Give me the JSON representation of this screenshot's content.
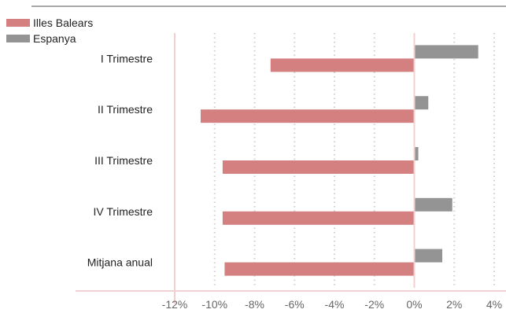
{
  "chart_data": {
    "type": "bar",
    "orientation": "horizontal",
    "categories": [
      "I Trimestre",
      "II Trimestre",
      "III Trimestre",
      "IV Trimestre",
      "Mitjana anual"
    ],
    "series": [
      {
        "name": "Illes Balears",
        "color": "#d47f80",
        "values": [
          -7.2,
          -10.7,
          -9.6,
          -9.6,
          -9.5
        ]
      },
      {
        "name": "Espanya",
        "color": "#949494",
        "values": [
          3.2,
          0.7,
          0.2,
          1.9,
          1.4
        ]
      }
    ],
    "xlim": [
      -12,
      4
    ],
    "xticks": [
      -12,
      -10,
      -8,
      -6,
      -4,
      -2,
      0,
      2,
      4
    ],
    "xtick_labels": [
      "-12%",
      "-10%",
      "-8%",
      "-6%",
      "-4%",
      "-2%",
      "0%",
      "2%",
      "4%"
    ],
    "grid": "vertical-dotted",
    "legend_position": "top-left",
    "colors": {
      "zero_line": "#f0d0d0",
      "axis_line": "#f0d0d0",
      "grid": "#cfcfcf",
      "top_rule": "#aaaaaa"
    }
  }
}
